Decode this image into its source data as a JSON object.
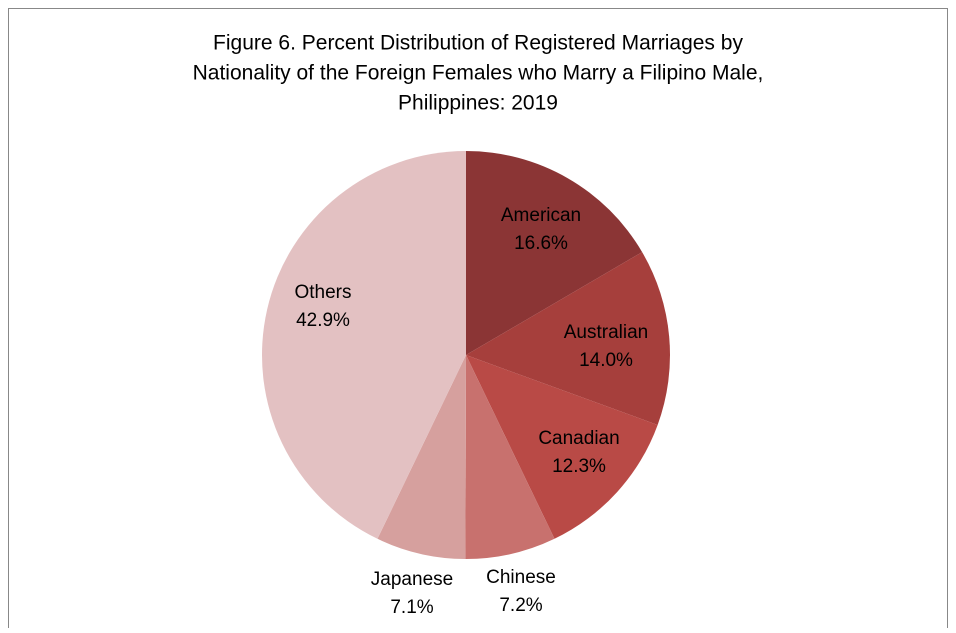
{
  "chart_data": {
    "type": "pie",
    "title": [
      "Figure 6. Percent Distribution of Registered Marriages by",
      "Nationality of the Foreign Females who Marry a Filipino Male,",
      "Philippines: 2019"
    ],
    "categories": [
      "American",
      "Australian",
      "Canadian",
      "Chinese",
      "Japanese",
      "Others"
    ],
    "values": [
      16.6,
      14.0,
      12.3,
      7.2,
      7.1,
      42.9
    ],
    "value_labels": [
      "16.6%",
      "14.0%",
      "12.3%",
      "7.2%",
      "7.1%",
      "42.9%"
    ],
    "colors": [
      "#8b3535",
      "#a63f3c",
      "#b94a46",
      "#c8716e",
      "#d6a09e",
      "#e3c1c2"
    ]
  }
}
